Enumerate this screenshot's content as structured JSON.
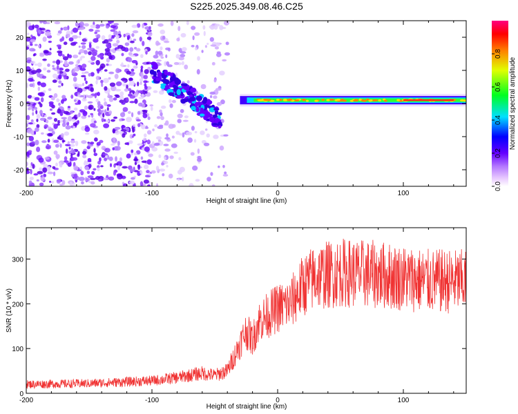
{
  "page_title": "S225.2025.349.08.46.C25",
  "chart_data": [
    {
      "type": "heatmap",
      "title": "S225.2025.349.08.46.C25",
      "xlabel": "Height of straight line (km)",
      "ylabel": "Frequency (Hz)",
      "xlim": [
        -200,
        150
      ],
      "ylim": [
        -25,
        25
      ],
      "xticks": [
        -200,
        -100,
        0,
        100
      ],
      "yticks": [
        -20,
        -10,
        0,
        10,
        20
      ],
      "colorbar": {
        "label": "Normalized spectral amplitude",
        "range": [
          0,
          1
        ],
        "ticks": [
          "0.0",
          "0.2",
          "0.4",
          "0.6",
          "0.8"
        ]
      },
      "features": {
        "scatter_region_x": [
          -200,
          -40
        ],
        "chirp_start": {
          "x": -100,
          "freq": 10
        },
        "chirp_end": {
          "x": -45,
          "freq": -5
        },
        "stable_line_x": [
          -30,
          150
        ],
        "stable_line_freq": 1,
        "peak_x": [
          100,
          140
        ]
      }
    },
    {
      "type": "line",
      "xlabel": "Height of straight line (km)",
      "ylabel": "SNR (10 * v/v)",
      "xlim": [
        -200,
        150
      ],
      "ylim": [
        0,
        370
      ],
      "xticks": [
        -200,
        -100,
        0,
        100
      ],
      "yticks": [
        0,
        100,
        200,
        300
      ],
      "series": [
        {
          "name": "SNR",
          "color": "#f03232",
          "x": [
            -200,
            -150,
            -100,
            -80,
            -60,
            -50,
            -40,
            -30,
            -25,
            -20,
            -15,
            -10,
            0,
            10,
            20,
            30,
            50,
            80,
            100,
            120,
            150
          ],
          "y": [
            20,
            22,
            28,
            35,
            45,
            40,
            50,
            110,
            140,
            120,
            160,
            170,
            190,
            200,
            240,
            260,
            270,
            265,
            258,
            250,
            250
          ]
        }
      ]
    }
  ]
}
